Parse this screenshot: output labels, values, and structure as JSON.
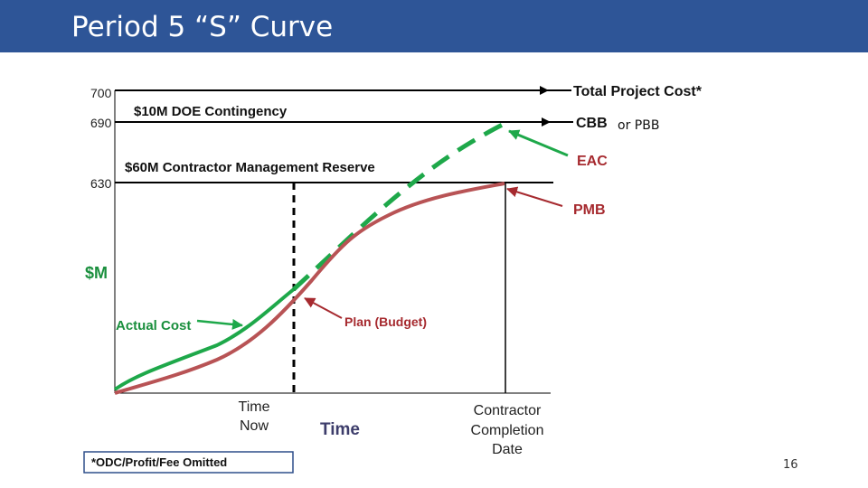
{
  "slide": {
    "title": "Period 5 “S” Curve",
    "page_number": "16",
    "header_color": "#2e5597"
  },
  "diagram": {
    "ticks": {
      "t700": "700",
      "t690": "690",
      "t630": "630"
    },
    "y_axis_label": "$M",
    "x_axis_label": "Time",
    "doe_contingency": "$10M DOE Contingency",
    "management_reserve": "$60M Contractor Management Reserve",
    "total_project_cost": "Total Project Cost*",
    "cbb": "CBB",
    "or_pbb": "or PBB",
    "eac": "EAC",
    "pmb": "PMB",
    "actual_cost": "Actual Cost",
    "plan_budget": "Plan (Budget)",
    "time_now_line1": "Time",
    "time_now_line2": "Now",
    "completion_line1": "Contractor",
    "completion_line2": "Completion",
    "completion_line3": "Date",
    "footnote": "*ODC/Profit/Fee Omitted",
    "colors": {
      "green": "#1ea84a",
      "red": "#b85355",
      "dark_red": "#a62a2f",
      "black": "#000000"
    }
  }
}
